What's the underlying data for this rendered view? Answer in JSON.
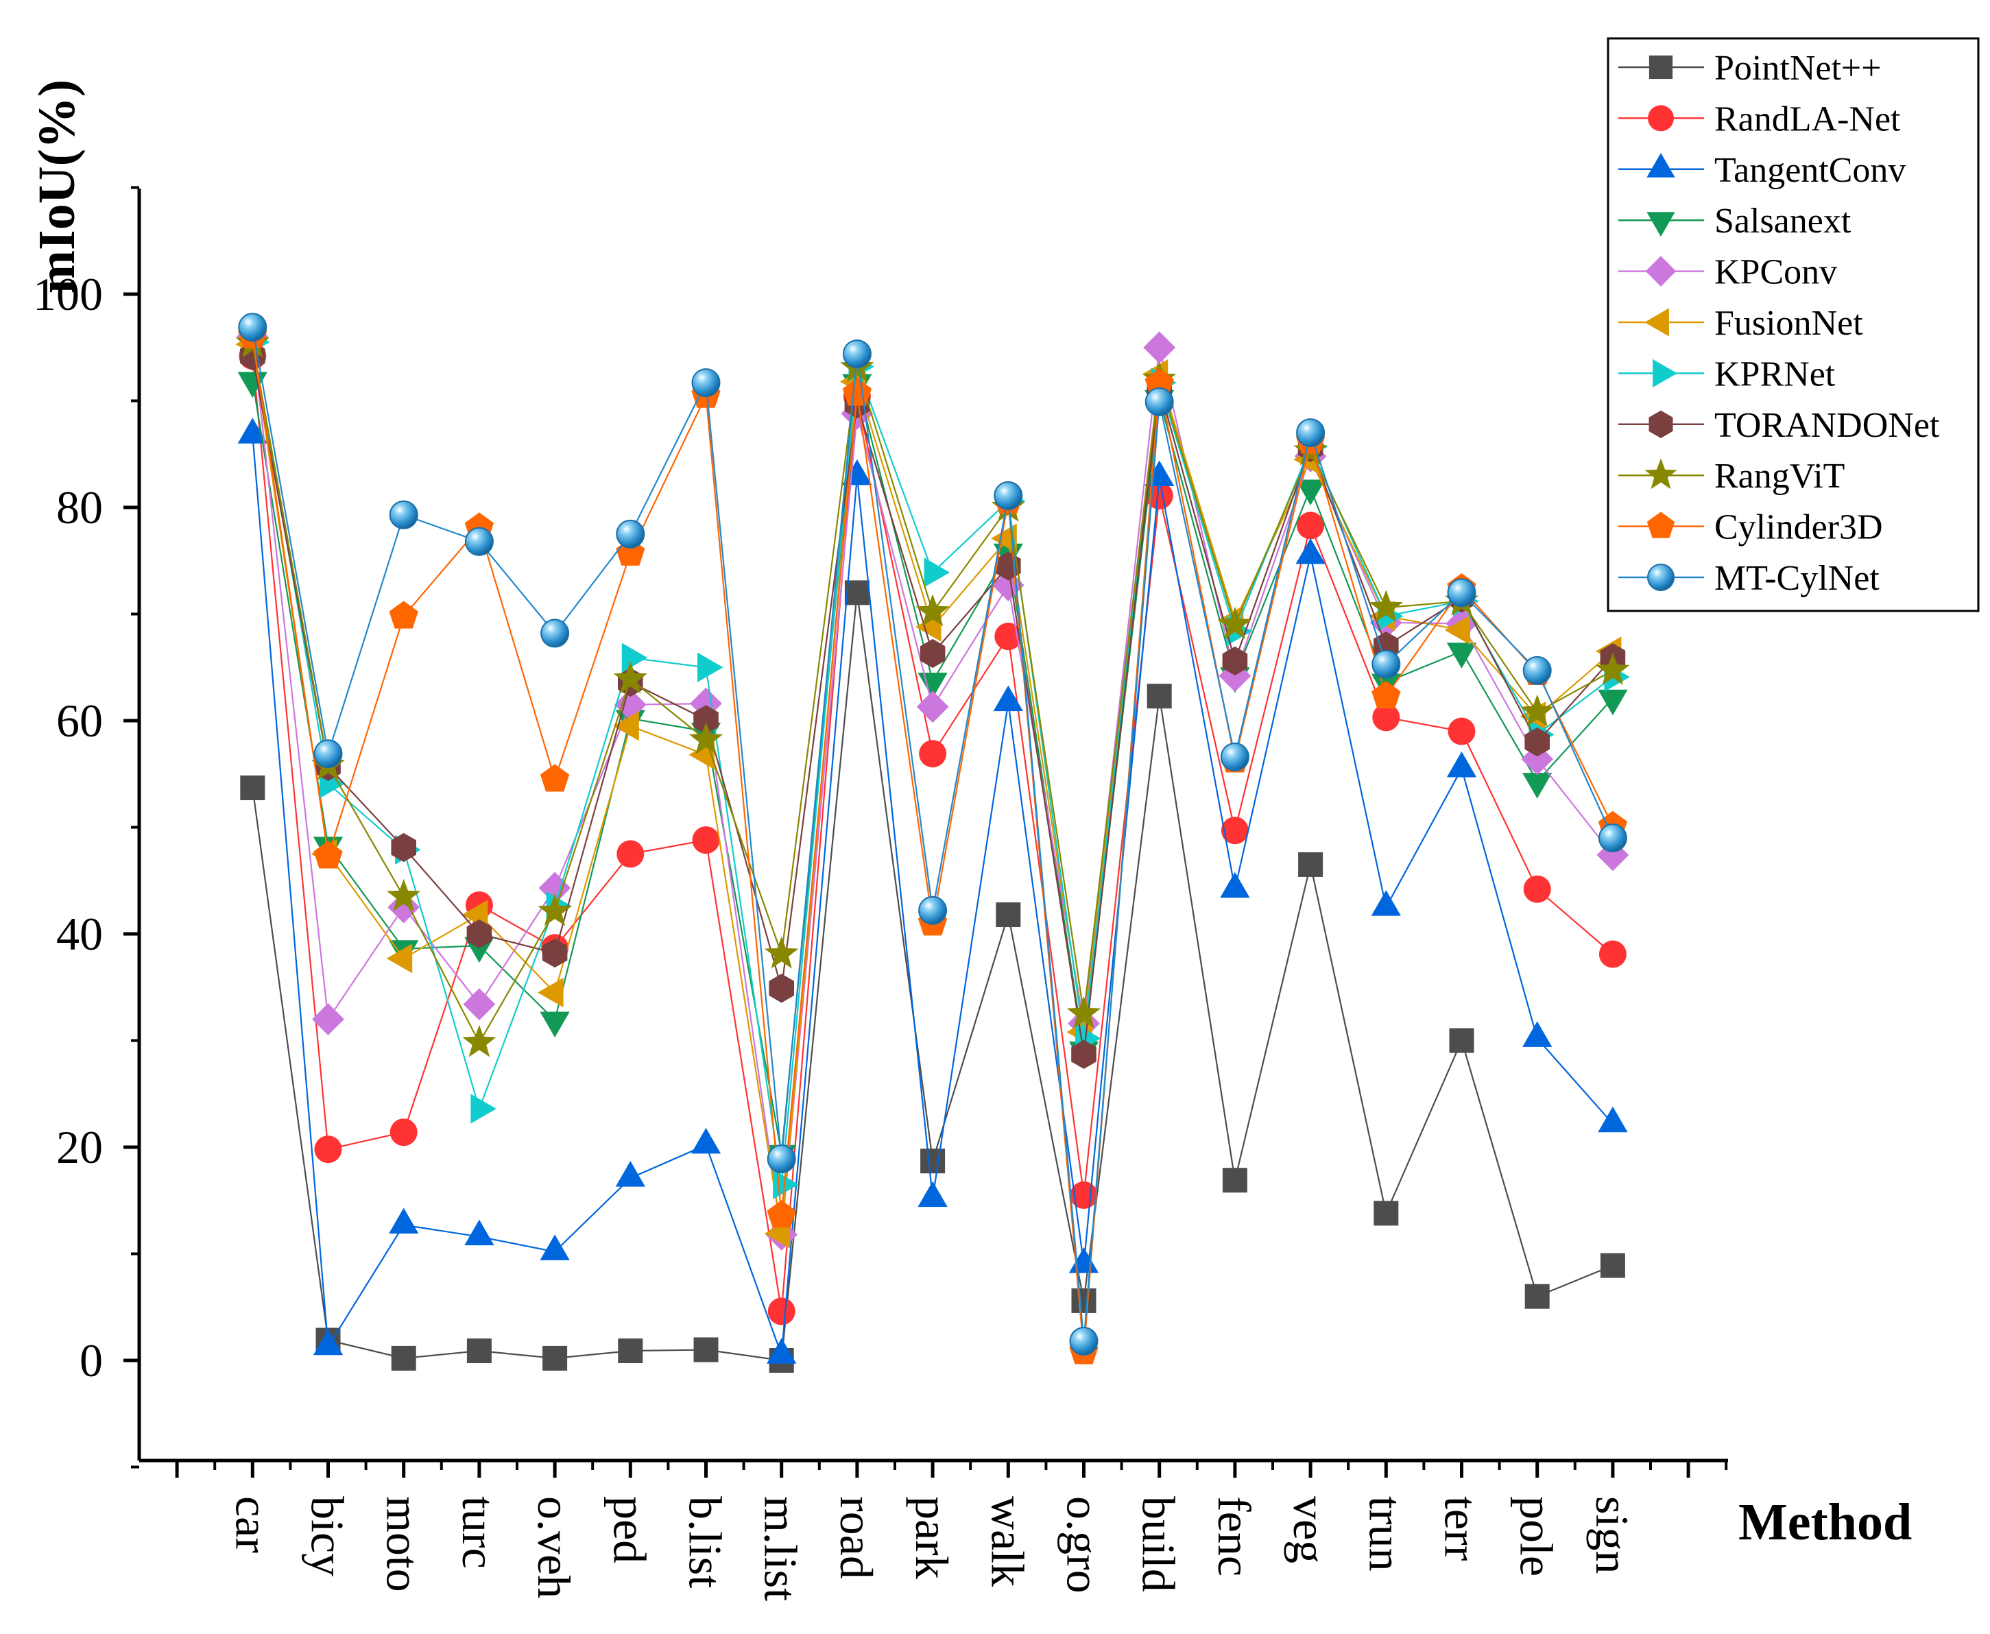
{
  "chart_data": {
    "type": "line",
    "title": "",
    "xlabel": "Method",
    "ylabel": "mIoU(%)",
    "ylim": [
      -10,
      110
    ],
    "yticks": [
      0,
      20,
      40,
      60,
      80,
      100
    ],
    "ytick_labels": [
      "0",
      "20",
      "40",
      "60",
      "80",
      "100"
    ],
    "grid": false,
    "legend_position": "top-right",
    "categories": [
      "car",
      "bicy",
      "moto",
      "turc",
      "o.veh",
      "ped",
      "b.list",
      "m.list",
      "road",
      "park",
      "walk",
      "o.gro",
      "build",
      "fenc",
      "veg",
      "trun",
      "terr",
      "pole",
      "sign"
    ],
    "series": [
      {
        "name": "PointNet++",
        "color": "#4d4d4d",
        "marker": "square",
        "values": [
          53.7,
          1.9,
          0.2,
          0.9,
          0.2,
          0.9,
          1.0,
          0.0,
          72.0,
          18.7,
          41.8,
          5.6,
          62.3,
          16.9,
          46.5,
          13.8,
          30.0,
          6.0,
          8.9
        ]
      },
      {
        "name": "RandLA-Net",
        "color": "#ff3333",
        "marker": "circle",
        "values": [
          94.2,
          19.8,
          21.4,
          42.7,
          38.7,
          47.5,
          48.8,
          4.6,
          90.4,
          56.9,
          67.9,
          15.5,
          81.1,
          49.7,
          78.3,
          60.3,
          59.0,
          44.2,
          38.1
        ]
      },
      {
        "name": "TangentConv",
        "color": "#0066dd",
        "marker": "triangle-up",
        "values": [
          86.8,
          1.3,
          12.7,
          11.6,
          10.2,
          17.1,
          20.2,
          0.5,
          82.9,
          15.2,
          61.7,
          9.0,
          82.8,
          44.2,
          75.5,
          42.5,
          55.5,
          30.2,
          22.2
        ]
      },
      {
        "name": "Salsanext",
        "color": "#119955",
        "marker": "triangle-down",
        "values": [
          91.9,
          48.3,
          38.6,
          38.9,
          31.9,
          60.2,
          59.0,
          19.4,
          91.7,
          63.7,
          75.8,
          29.1,
          90.2,
          64.2,
          81.8,
          63.6,
          66.5,
          54.3,
          62.1
        ]
      },
      {
        "name": "KPConv",
        "color": "#cc77dd",
        "marker": "diamond",
        "values": [
          96.0,
          32.0,
          42.5,
          33.4,
          44.3,
          61.5,
          61.6,
          11.8,
          88.8,
          61.3,
          72.7,
          31.6,
          95.0,
          64.2,
          84.8,
          69.2,
          69.1,
          56.4,
          47.4
        ]
      },
      {
        "name": "FusionNet",
        "color": "#dd9900",
        "marker": "triangle-left",
        "values": [
          95.3,
          47.5,
          37.7,
          41.8,
          34.5,
          59.5,
          56.8,
          11.9,
          91.8,
          68.8,
          77.1,
          30.8,
          92.5,
          69.4,
          84.5,
          69.8,
          68.5,
          60.4,
          66.5
        ]
      },
      {
        "name": "KPRNet",
        "color": "#11cccc",
        "marker": "triangle-right",
        "values": [
          95.5,
          54.1,
          47.9,
          23.6,
          42.6,
          65.9,
          65.0,
          16.5,
          93.2,
          73.9,
          80.6,
          30.2,
          91.7,
          68.4,
          85.7,
          69.8,
          71.2,
          58.7,
          64.1
        ]
      },
      {
        "name": "TORANDONet",
        "color": "#7a3f3f",
        "marker": "hexagon",
        "values": [
          94.2,
          55.7,
          48.1,
          40.0,
          38.2,
          63.6,
          60.1,
          34.9,
          89.7,
          66.3,
          74.5,
          28.7,
          91.3,
          65.6,
          85.6,
          67.0,
          71.5,
          58.0,
          65.9
        ]
      },
      {
        "name": "RangViT",
        "color": "#888800",
        "marker": "star",
        "values": [
          95.4,
          55.8,
          43.5,
          29.8,
          42.1,
          63.9,
          58.2,
          38.1,
          93.1,
          70.2,
          80.0,
          32.5,
          92.0,
          69.0,
          85.3,
          70.6,
          71.2,
          60.8,
          64.7
        ]
      },
      {
        "name": "Cylinder3D",
        "color": "#ff6600",
        "marker": "pentagon",
        "values": [
          96.1,
          47.3,
          69.8,
          78.1,
          54.5,
          75.7,
          90.5,
          13.6,
          90.7,
          41.0,
          80.6,
          0.8,
          91.6,
          56.3,
          86.2,
          62.3,
          72.4,
          64.5,
          50.1
        ]
      },
      {
        "name": "MT-CylNet",
        "color": "#2288cc",
        "marker": "sphere",
        "values": [
          96.9,
          56.9,
          79.3,
          76.8,
          68.2,
          77.5,
          91.7,
          18.9,
          94.4,
          42.2,
          81.1,
          1.8,
          89.9,
          56.6,
          87.0,
          65.3,
          72.0,
          64.7,
          49.0
        ]
      }
    ]
  }
}
